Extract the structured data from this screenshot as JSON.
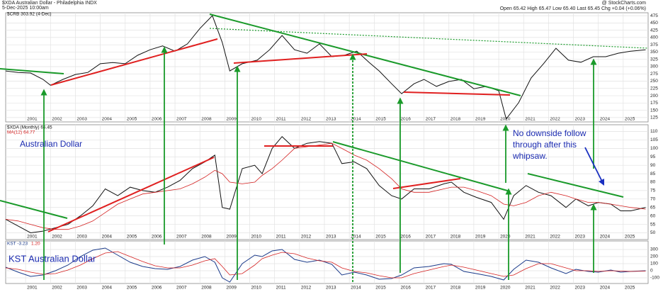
{
  "header": {
    "title": "$XDA Australian Dollar - Philadelphia INDX",
    "date": "5-Dec-2025 10:00am",
    "source": "@ StockCharts.com",
    "quote": "Open 65.42 High 65.47 Low 65.40 Last 65.45 Chg +0.04 (+0.06%)"
  },
  "chart_data": [
    {
      "type": "line",
      "xlim": [
        2000.2,
        2026
      ],
      "xticks": [
        2001,
        2002,
        2003,
        2004,
        2005,
        2006,
        2007,
        2008,
        2009,
        2010,
        2011,
        2012,
        2013,
        2014,
        2015,
        2016,
        2017,
        2018,
        2019,
        2020,
        2021,
        2022,
        2023,
        2024,
        2025
      ],
      "ylim": [
        110,
        485
      ],
      "yticks": [
        125,
        150,
        175,
        200,
        225,
        250,
        275,
        300,
        325,
        350,
        375,
        400,
        425,
        450,
        475
      ],
      "grid": true,
      "x": [
        2000.2,
        2000.7,
        2001.2,
        2001.7,
        2002.0,
        2002.5,
        2003.0,
        2003.5,
        2004.0,
        2004.5,
        2005.0,
        2005.5,
        2006.0,
        2006.5,
        2007.0,
        2007.5,
        2008.0,
        2008.5,
        2008.9,
        2009.2,
        2009.7,
        2010.3,
        2010.8,
        2011.3,
        2011.8,
        2012.3,
        2012.8,
        2013.3,
        2013.8,
        2014.3,
        2014.8,
        2015.2,
        2015.7,
        2016.1,
        2016.6,
        2017.0,
        2017.5,
        2018.0,
        2018.5,
        2019.0,
        2019.5,
        2020.0,
        2020.3,
        2020.8,
        2021.3,
        2021.8,
        2022.3,
        2022.8,
        2023.3,
        2023.8,
        2024.3,
        2024.8,
        2025.3,
        2025.9
      ],
      "series": [
        {
          "name": "$CRB 303.92 (4-Dec)",
          "color": "#111111",
          "values": [
            285,
            280,
            278,
            256,
            236,
            256,
            273,
            280,
            310,
            314,
            310,
            339,
            358,
            371,
            353,
            378,
            431,
            475,
            383,
            285,
            310,
            322,
            358,
            407,
            358,
            346,
            378,
            334,
            339,
            353,
            314,
            285,
            241,
            207,
            241,
            256,
            232,
            249,
            256,
            224,
            232,
            217,
            120,
            176,
            261,
            310,
            363,
            322,
            315,
            334,
            334,
            346,
            353,
            358
          ]
        }
      ]
    },
    {
      "type": "line",
      "annotations": [
        "Australian Dollar",
        "No downside follow",
        "through after this",
        "whipsaw."
      ],
      "xlim": [
        2000.2,
        2026
      ],
      "xticks": [
        2001,
        2002,
        2003,
        2004,
        2005,
        2006,
        2007,
        2008,
        2009,
        2010,
        2011,
        2012,
        2013,
        2014,
        2015,
        2016,
        2017,
        2018,
        2019,
        2020,
        2021,
        2022,
        2023,
        2024,
        2025
      ],
      "ylim": [
        46,
        114
      ],
      "yticks": [
        50,
        55,
        60,
        65,
        70,
        75,
        80,
        85,
        90,
        95,
        100,
        105,
        110
      ],
      "grid": true,
      "x": [
        2000.2,
        2000.7,
        2001.2,
        2001.7,
        2002.2,
        2002.7,
        2003.2,
        2003.7,
        2004.2,
        2004.7,
        2005.2,
        2005.7,
        2006.2,
        2006.7,
        2007.2,
        2007.7,
        2008.2,
        2008.6,
        2008.9,
        2009.2,
        2009.7,
        2010.2,
        2010.5,
        2010.9,
        2011.3,
        2011.8,
        2012.3,
        2012.8,
        2013.3,
        2013.7,
        2014.2,
        2014.7,
        2015.2,
        2015.7,
        2016.1,
        2016.6,
        2017.2,
        2017.8,
        2018.1,
        2018.6,
        2019.1,
        2019.7,
        2020.2,
        2020.6,
        2021.1,
        2021.6,
        2022.1,
        2022.7,
        2023.1,
        2023.6,
        2024.0,
        2024.5,
        2024.9,
        2025.3,
        2025.9
      ],
      "series": [
        {
          "name": "$XDA (Monthly) 65.45",
          "color": "#111111",
          "values": [
            58,
            54,
            50,
            51,
            53,
            55,
            60,
            66,
            76,
            72,
            77,
            75,
            74,
            77,
            81,
            88,
            92,
            96,
            65,
            64,
            88,
            90,
            85,
            100,
            107,
            100,
            103,
            104,
            103,
            91,
            92,
            88,
            78,
            72,
            70,
            76,
            76,
            79,
            80,
            74,
            71,
            68,
            58,
            72,
            78,
            74,
            72,
            65,
            70,
            66,
            68,
            67,
            63,
            63,
            65
          ]
        },
        {
          "name": "MA(12) 64.77",
          "color": "#d42020",
          "values": [
            58,
            57,
            55,
            53,
            52,
            52,
            54,
            57,
            62,
            67,
            70,
            73,
            74,
            75,
            76,
            79,
            83,
            87,
            85,
            80,
            79,
            80,
            84,
            88,
            93,
            100,
            101,
            102,
            103,
            100,
            96,
            93,
            88,
            82,
            76,
            74,
            74,
            76,
            77,
            77,
            75,
            72,
            67,
            66,
            68,
            72,
            74,
            72,
            70,
            68,
            68,
            67,
            66,
            65,
            64
          ]
        }
      ]
    },
    {
      "type": "line",
      "annotations": [
        "KST Australian Dollar"
      ],
      "xlim": [
        2000.2,
        2026
      ],
      "xticks": [
        2001,
        2002,
        2003,
        2004,
        2005,
        2006,
        2007,
        2008,
        2009,
        2010,
        2011,
        2012,
        2013,
        2014,
        2015,
        2016,
        2017,
        2018,
        2019,
        2020,
        2021,
        2022,
        2023,
        2024,
        2025
      ],
      "ylim": [
        -180,
        420
      ],
      "yticks": [
        -100,
        0,
        100,
        200,
        300
      ],
      "grid": true,
      "x": [
        2000.2,
        2000.7,
        2001.2,
        2001.7,
        2002.2,
        2002.7,
        2003.2,
        2003.7,
        2004.2,
        2004.7,
        2005.2,
        2005.7,
        2006.2,
        2006.7,
        2007.2,
        2007.7,
        2008.2,
        2008.6,
        2008.9,
        2009.2,
        2009.7,
        2010.2,
        2010.5,
        2010.9,
        2011.3,
        2011.8,
        2012.3,
        2012.8,
        2013.3,
        2013.7,
        2014.2,
        2014.7,
        2015.2,
        2015.7,
        2016.1,
        2016.6,
        2017.2,
        2017.8,
        2018.1,
        2018.6,
        2019.1,
        2019.7,
        2020.2,
        2020.6,
        2021.1,
        2021.6,
        2022.1,
        2022.7,
        2023.1,
        2023.6,
        2024.0,
        2024.5,
        2024.9,
        2025.3,
        2025.9
      ],
      "series": [
        {
          "name": "KST -3.23",
          "color": "#1a3a8a",
          "values": [
            50,
            -20,
            -80,
            -60,
            0,
            80,
            200,
            290,
            320,
            220,
            120,
            60,
            30,
            20,
            60,
            150,
            200,
            120,
            -100,
            -160,
            100,
            220,
            200,
            280,
            300,
            160,
            120,
            150,
            90,
            -60,
            -20,
            -60,
            -120,
            -110,
            -60,
            40,
            60,
            100,
            90,
            -10,
            -40,
            -80,
            -130,
            20,
            150,
            120,
            40,
            -40,
            20,
            -10,
            -20,
            10,
            -20,
            -10,
            0
          ]
        },
        {
          "name": "1.20",
          "color": "#d42020",
          "values": [
            40,
            20,
            -20,
            -50,
            -40,
            10,
            80,
            170,
            250,
            270,
            200,
            130,
            70,
            40,
            40,
            80,
            140,
            170,
            60,
            -60,
            -40,
            80,
            170,
            220,
            260,
            240,
            180,
            140,
            120,
            40,
            -10,
            -30,
            -70,
            -100,
            -100,
            -40,
            10,
            60,
            80,
            50,
            10,
            -40,
            -80,
            -60,
            30,
            100,
            100,
            40,
            0,
            0,
            -10,
            0,
            -5,
            -10,
            -5
          ]
        }
      ]
    }
  ]
}
